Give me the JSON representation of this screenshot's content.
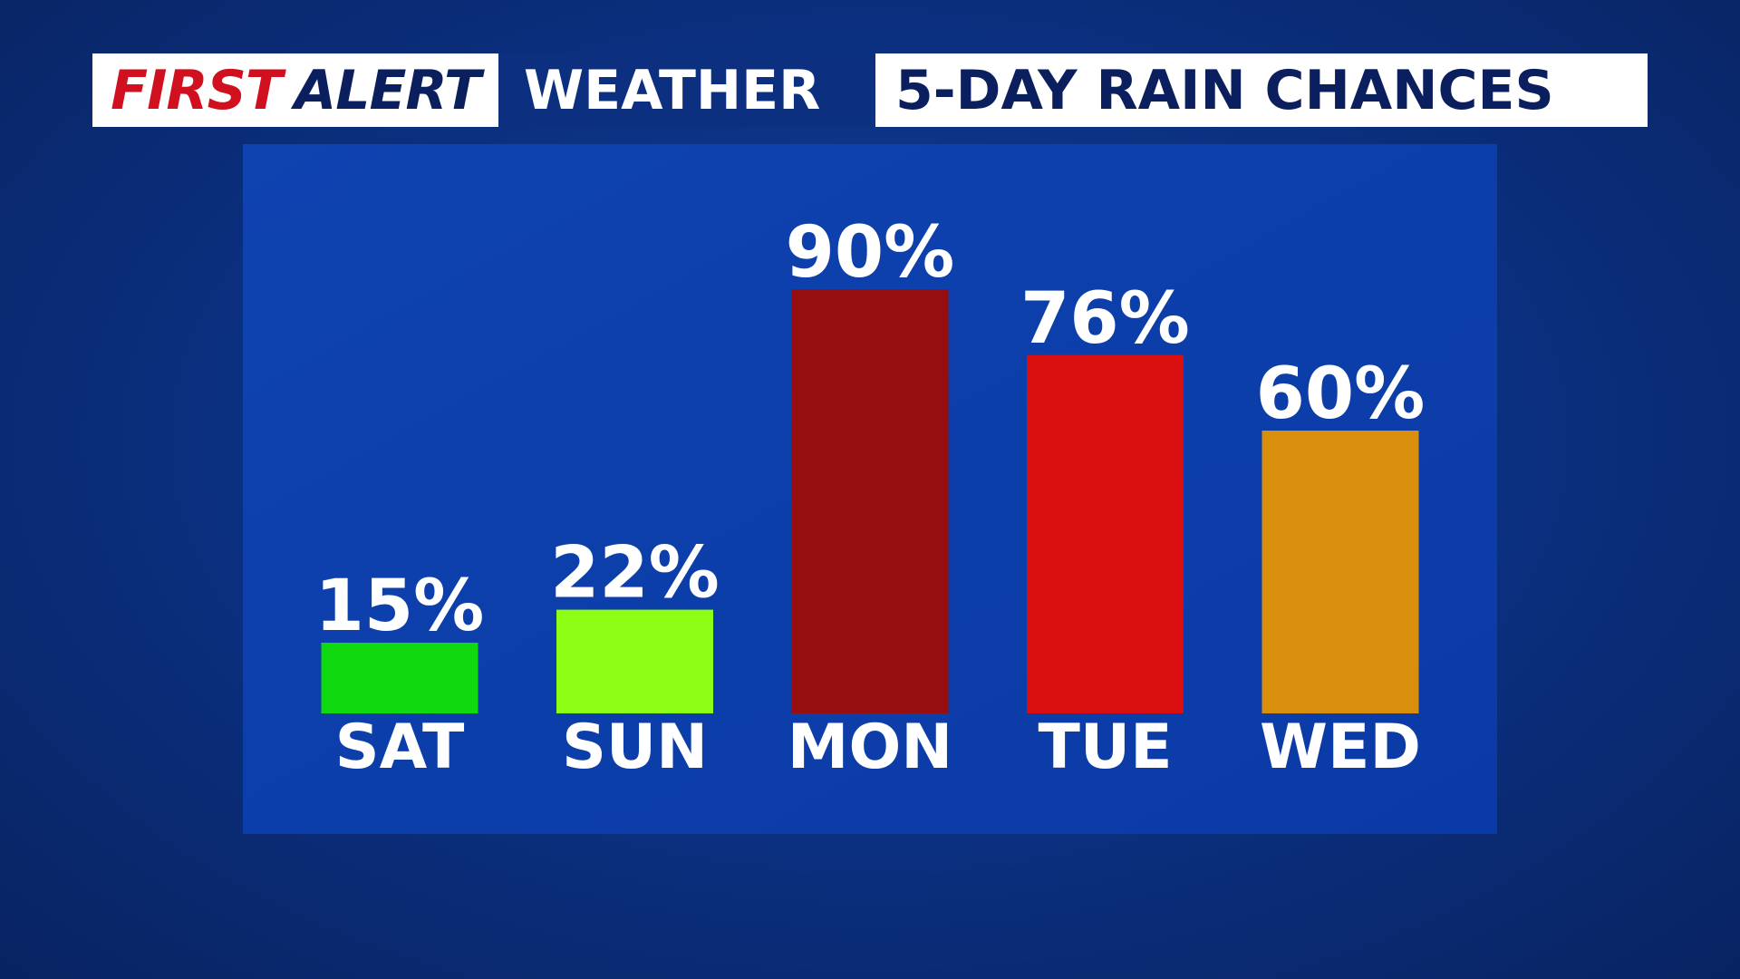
{
  "brand": {
    "first": "FIRST",
    "alert": "ALERT",
    "weather": "WEATHER"
  },
  "chart_data": {
    "type": "bar",
    "title": "5-DAY RAIN CHANCES",
    "categories": [
      "SAT",
      "SUN",
      "MON",
      "TUE",
      "WED"
    ],
    "values": [
      15,
      22,
      90,
      76,
      60
    ],
    "value_labels": [
      "15%",
      "22%",
      "90%",
      "76%",
      "60%"
    ],
    "colors": [
      "#10d910",
      "#8cff14",
      "#960e10",
      "#d90f0f",
      "#d98f0c"
    ]
  }
}
